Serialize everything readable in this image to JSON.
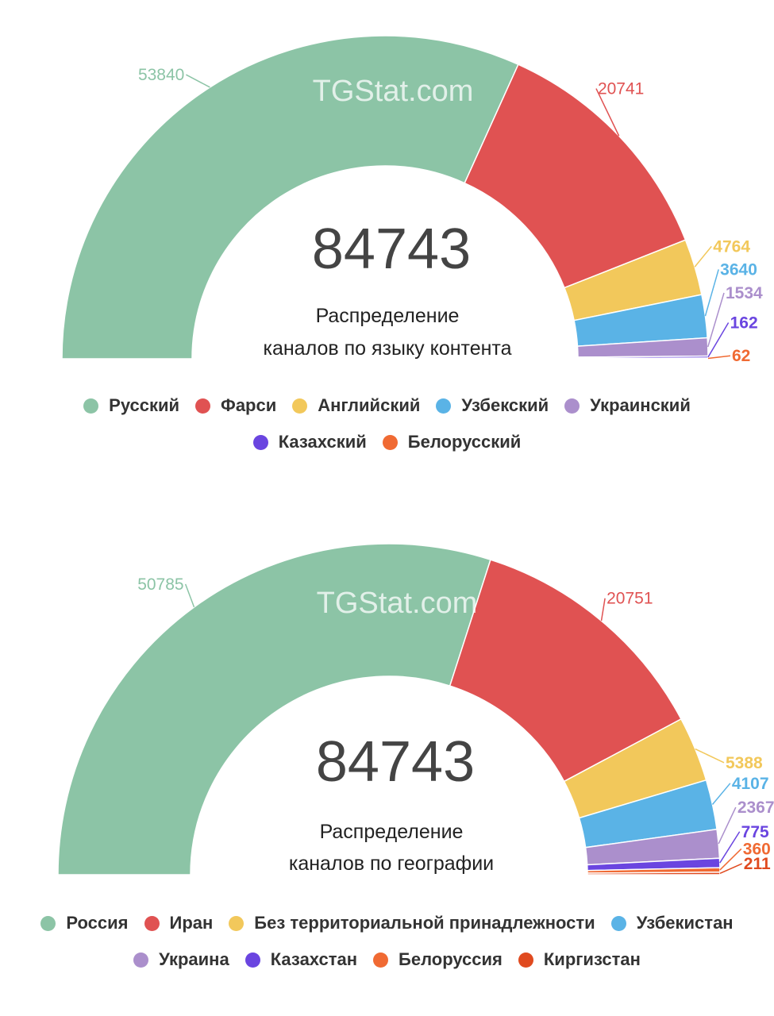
{
  "chart_data": [
    {
      "type": "pie",
      "variant": "semicircle-donut",
      "watermark": "TGStat.com",
      "total": "84743",
      "title": [
        "Распределение",
        "каналов по языку контента"
      ],
      "legend_position": "bottom",
      "series": [
        {
          "name": "Русский",
          "value": 53840,
          "color": "#8cc4a6"
        },
        {
          "name": "Фарси",
          "value": 20741,
          "color": "#e05252"
        },
        {
          "name": "Английский",
          "value": 4764,
          "color": "#f2c85b"
        },
        {
          "name": "Узбекский",
          "value": 3640,
          "color": "#5ab3e6"
        },
        {
          "name": "Украинский",
          "value": 1534,
          "color": "#ab8fcc"
        },
        {
          "name": "Казахский",
          "value": 162,
          "color": "#6a45e0"
        },
        {
          "name": "Белорусский",
          "value": 62,
          "color": "#f06a33"
        }
      ]
    },
    {
      "type": "pie",
      "variant": "semicircle-donut",
      "watermark": "TGStat.com",
      "total": "84743",
      "title": [
        "Распределение",
        "каналов по географии"
      ],
      "legend_position": "bottom",
      "series": [
        {
          "name": "Россия",
          "value": 50785,
          "color": "#8cc4a6"
        },
        {
          "name": "Иран",
          "value": 20751,
          "color": "#e05252"
        },
        {
          "name": "Без территориальной принадлежности",
          "value": 5388,
          "color": "#f2c85b"
        },
        {
          "name": "Узбекистан",
          "value": 4107,
          "color": "#5ab3e6"
        },
        {
          "name": "Украина",
          "value": 2367,
          "color": "#ab8fcc"
        },
        {
          "name": "Казахстан",
          "value": 775,
          "color": "#6a45e0"
        },
        {
          "name": "Белоруссия",
          "value": 360,
          "color": "#f06a33"
        },
        {
          "name": "Киргизстан",
          "value": 211,
          "color": "#e04a1f"
        }
      ]
    }
  ]
}
